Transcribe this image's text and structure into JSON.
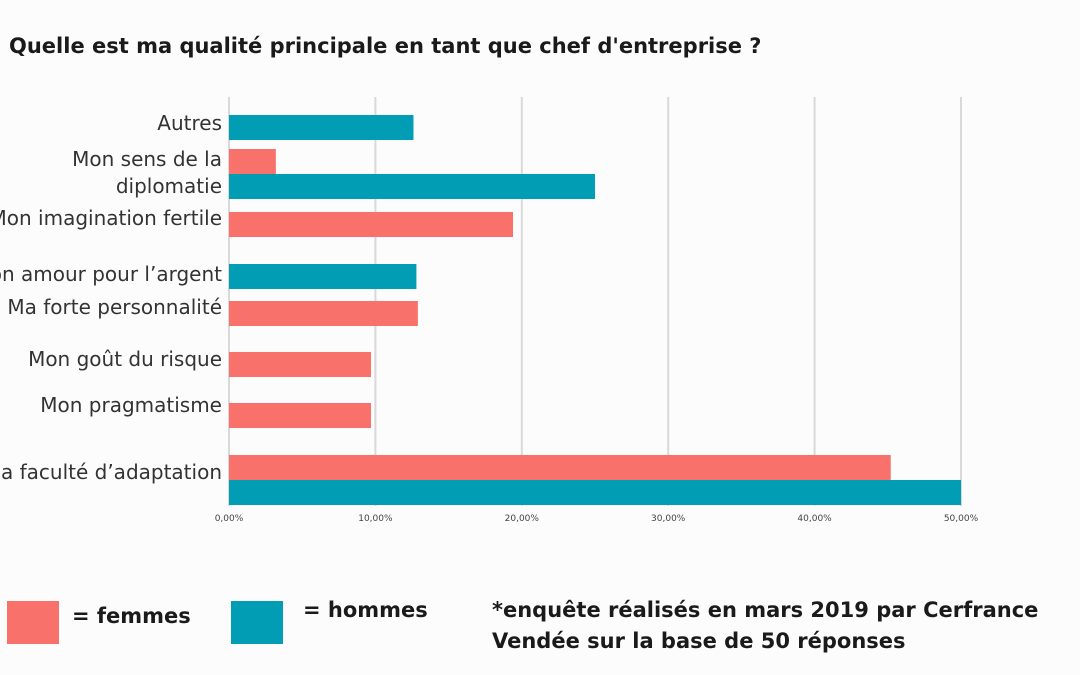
{
  "title": "Quelle est ma qualité principale en tant que chef d'entreprise ?",
  "legend": {
    "femmes": "= femmes",
    "hommes": "= hommes"
  },
  "note": {
    "line1": "*enquête réalisés en mars 2019 par Cerfrance",
    "line2": "Vendée  sur la base de 50 réponses"
  },
  "colors": {
    "femmes": "#f8716a",
    "hommes": "#019db5",
    "grid": "#d9d9d9"
  },
  "chart_data": {
    "type": "bar",
    "orientation": "horizontal",
    "title": "Quelle est ma qualité principale en tant que chef d'entreprise ?",
    "xlabel": "",
    "ylabel": "",
    "xlim": [
      0,
      50
    ],
    "x_ticks": [
      "0,00%",
      "10,00%",
      "20,00%",
      "30,00%",
      "40,00%",
      "50,00%"
    ],
    "grid": true,
    "categories": [
      [
        "Autres"
      ],
      [
        "Mon sens de la",
        "diplomatie"
      ],
      [
        "Mon imagination fertile"
      ],
      [
        "Mon amour pour l’argent"
      ],
      [
        "Ma forte personnalité"
      ],
      [
        "Mon goût du risque"
      ],
      [
        "Mon pragmatisme"
      ],
      [
        "Ma faculté d’adaptation"
      ]
    ],
    "series": [
      {
        "name": "femmes",
        "values": [
          0,
          3.2,
          19.4,
          0,
          12.9,
          9.7,
          9.7,
          45.2
        ]
      },
      {
        "name": "hommes",
        "values": [
          12.6,
          25.0,
          0,
          12.8,
          0,
          0,
          0,
          50.0
        ]
      }
    ]
  }
}
